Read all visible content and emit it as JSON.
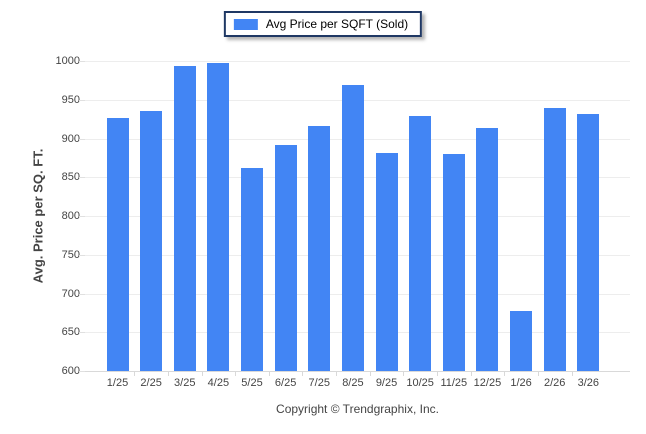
{
  "legend": {
    "label": "Avg Price per SQFT (Sold)"
  },
  "footer": {
    "copyright": "Copyright © Trendgraphix, Inc."
  },
  "colors": {
    "bar": "#4285f4",
    "legend_border": "#1f3864",
    "gridline": "#ededed",
    "axis_text": "#444444"
  },
  "chart_data": {
    "type": "bar",
    "title": "Avg Price per SQFT (Sold)",
    "categories": [
      "1/25",
      "2/25",
      "3/25",
      "4/25",
      "5/25",
      "6/25",
      "7/25",
      "8/25",
      "9/25",
      "10/25",
      "11/25",
      "12/25",
      "1/26",
      "2/26",
      "3/26"
    ],
    "values": [
      926,
      935,
      993,
      998,
      862,
      892,
      916,
      969,
      881,
      929,
      880,
      914,
      678,
      940,
      931
    ],
    "xlabel": "",
    "ylabel": "Avg. Price per SQ. FT.",
    "ylim": [
      600,
      1000
    ],
    "ytick_step": 50,
    "grid": true,
    "legend_position": "top-center",
    "bar_color": "#4285f4"
  }
}
